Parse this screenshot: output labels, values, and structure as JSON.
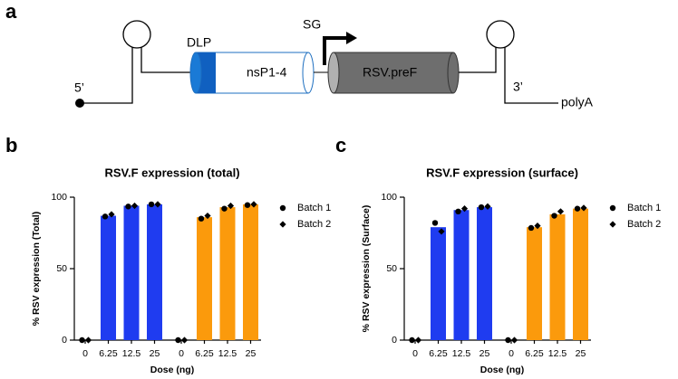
{
  "diagram": {
    "panel": "a",
    "five_prime": "5’",
    "dlp": "DLP",
    "nsp": "nsP1-4",
    "sg": "SG",
    "gene": "RSV.preF",
    "three_prime": "3’",
    "polya": "polyA"
  },
  "chart_data": [
    {
      "type": "bar",
      "panel": "b",
      "title": "RSV.F expression (total)",
      "ylabel": "% RSV expression (Total)",
      "xlabel": "Dose (ng)",
      "categories": [
        "0",
        "6.25",
        "12.5",
        "25",
        "0",
        "6.25",
        "12.5",
        "25"
      ],
      "values": [
        0,
        87,
        94,
        95,
        0,
        86,
        93,
        95
      ],
      "colors": [
        "#1f3cf0",
        "#1f3cf0",
        "#1f3cf0",
        "#1f3cf0",
        "#fb9a0c",
        "#fb9a0c",
        "#fb9a0c",
        "#fb9a0c"
      ],
      "series": [
        {
          "name": "Batch 1",
          "marker": "circle",
          "color": "#000000",
          "values": [
            0,
            86.5,
            93.5,
            95,
            0,
            85,
            92,
            94.5
          ]
        },
        {
          "name": "Batch 2",
          "marker": "diamond",
          "color": "#000000",
          "values": [
            0,
            88,
            94,
            95,
            0,
            87,
            94,
            95
          ]
        }
      ],
      "ylim": [
        0,
        100
      ],
      "yticks": [
        0,
        50,
        100
      ]
    },
    {
      "type": "bar",
      "panel": "c",
      "title": "RSV.F expression (surface)",
      "ylabel": "% RSV expression (Surface)",
      "xlabel": "Dose (ng)",
      "categories": [
        "0",
        "6.25",
        "12.5",
        "25",
        "0",
        "6.25",
        "12.5",
        "25"
      ],
      "values": [
        0,
        79,
        91,
        93,
        0,
        79,
        88,
        92
      ],
      "colors": [
        "#1f3cf0",
        "#1f3cf0",
        "#1f3cf0",
        "#1f3cf0",
        "#fb9a0c",
        "#fb9a0c",
        "#fb9a0c",
        "#fb9a0c"
      ],
      "series": [
        {
          "name": "Batch 1",
          "marker": "circle",
          "color": "#000000",
          "values": [
            0,
            82,
            90,
            93,
            0,
            78.5,
            87,
            92
          ]
        },
        {
          "name": "Batch 2",
          "marker": "diamond",
          "color": "#000000",
          "values": [
            0,
            76,
            92,
            93.5,
            0,
            80,
            90,
            92.5
          ]
        }
      ],
      "ylim": [
        0,
        100
      ],
      "yticks": [
        0,
        50,
        100
      ]
    }
  ]
}
